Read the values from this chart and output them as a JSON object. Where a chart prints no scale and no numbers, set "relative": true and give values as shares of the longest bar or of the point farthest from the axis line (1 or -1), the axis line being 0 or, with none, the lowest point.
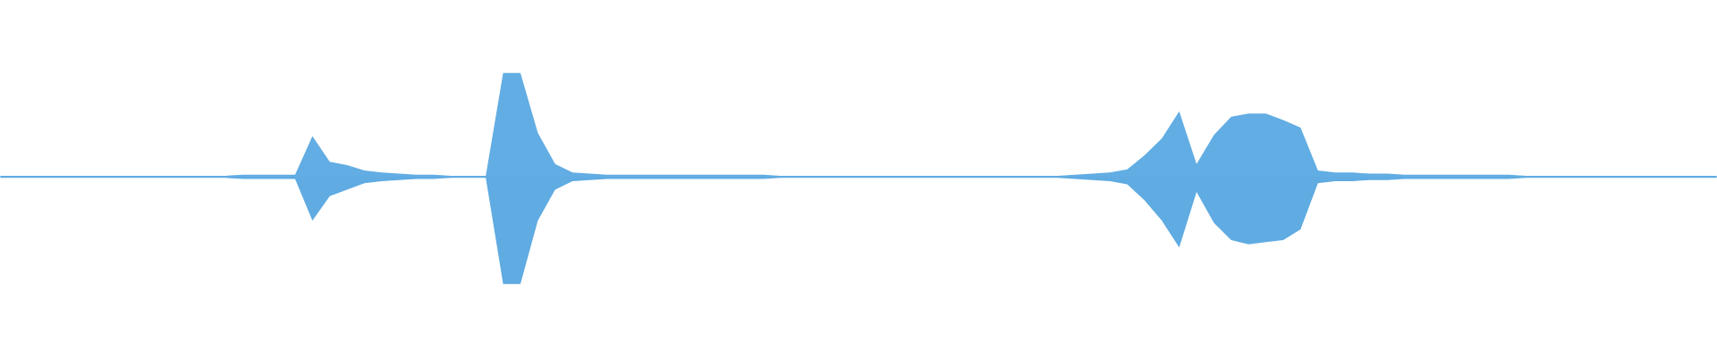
{
  "chart_data": {
    "type": "area",
    "relative": true,
    "categories": [
      null,
      null,
      null,
      null,
      null,
      null,
      null,
      null,
      null,
      null,
      null,
      null,
      null,
      null,
      null,
      null,
      null,
      null,
      null,
      null,
      null,
      null,
      null,
      null,
      null,
      null,
      null,
      null,
      null,
      null,
      null,
      null,
      null,
      null,
      null,
      null,
      null,
      null,
      null,
      null,
      null,
      null,
      null,
      null,
      null,
      null,
      null,
      null,
      null,
      null,
      null,
      null,
      null,
      null,
      null,
      null,
      null,
      null,
      null,
      null,
      null,
      null,
      null,
      null,
      null,
      null,
      null,
      null,
      null,
      null,
      null,
      null,
      null,
      null,
      null,
      null,
      null,
      null,
      null,
      null,
      null,
      null,
      null,
      null,
      null,
      null,
      null,
      null,
      null,
      null,
      null,
      null,
      null,
      null,
      null,
      null,
      null,
      null,
      null,
      null
    ],
    "series": [
      {
        "color": "#62ade3",
        "values": [
          0.01,
          0.01,
          0.01,
          0.01,
          0.01,
          0.01,
          0.01,
          0.01,
          0.01,
          0.01,
          0.01,
          0.01,
          0.01,
          0.01,
          0.02,
          0.02,
          0.02,
          0.02,
          0.38,
          0.14,
          0.11,
          0.06,
          0.04,
          0.03,
          0.02,
          0.02,
          0.01,
          0.01,
          0.01,
          0.97,
          0.97,
          0.41,
          0.12,
          0.04,
          0.03,
          0.02,
          0.02,
          0.02,
          0.02,
          0.02,
          0.02,
          0.02,
          0.02,
          0.02,
          0.02,
          0.01,
          0.01,
          0.01,
          0.01,
          0.01,
          0.01,
          0.01,
          0.01,
          0.01,
          0.01,
          0.01,
          0.01,
          0.01,
          0.01,
          0.01,
          0.01,
          0.01,
          0.02,
          0.03,
          0.04,
          0.07,
          0.2,
          0.36,
          0.61,
          0.12,
          0.39,
          0.56,
          0.59,
          0.59,
          0.53,
          0.46,
          0.06,
          0.04,
          0.04,
          0.03,
          0.03,
          0.02,
          0.02,
          0.02,
          0.02,
          0.02,
          0.02,
          0.02,
          0.01,
          0.01,
          0.01,
          0.01,
          0.01,
          0.01,
          0.01,
          0.01,
          0.01,
          0.01,
          0.01,
          0.01
        ]
      },
      {
        "color": "#5fabe2",
        "values": [
          -0.01,
          -0.01,
          -0.01,
          -0.01,
          -0.01,
          -0.01,
          -0.01,
          -0.01,
          -0.01,
          -0.01,
          -0.01,
          -0.01,
          -0.01,
          -0.01,
          -0.02,
          -0.02,
          -0.02,
          -0.02,
          -0.41,
          -0.18,
          -0.12,
          -0.06,
          -0.04,
          -0.03,
          -0.02,
          -0.02,
          -0.01,
          -0.01,
          -0.01,
          -1,
          -1,
          -0.41,
          -0.12,
          -0.04,
          -0.03,
          -0.02,
          -0.02,
          -0.02,
          -0.02,
          -0.02,
          -0.02,
          -0.02,
          -0.02,
          -0.02,
          -0.02,
          -0.01,
          -0.01,
          -0.01,
          -0.01,
          -0.01,
          -0.01,
          -0.01,
          -0.01,
          -0.01,
          -0.01,
          -0.01,
          -0.01,
          -0.01,
          -0.01,
          -0.01,
          -0.01,
          -0.01,
          -0.02,
          -0.03,
          -0.04,
          -0.07,
          -0.22,
          -0.41,
          -0.66,
          -0.14,
          -0.43,
          -0.59,
          -0.63,
          -0.61,
          -0.59,
          -0.49,
          -0.06,
          -0.04,
          -0.04,
          -0.03,
          -0.03,
          -0.02,
          -0.02,
          -0.02,
          -0.02,
          -0.02,
          -0.02,
          -0.02,
          -0.01,
          -0.01,
          -0.01,
          -0.01,
          -0.01,
          -0.01,
          -0.01,
          -0.01,
          -0.01,
          -0.01,
          -0.01,
          -0.01
        ]
      }
    ]
  }
}
